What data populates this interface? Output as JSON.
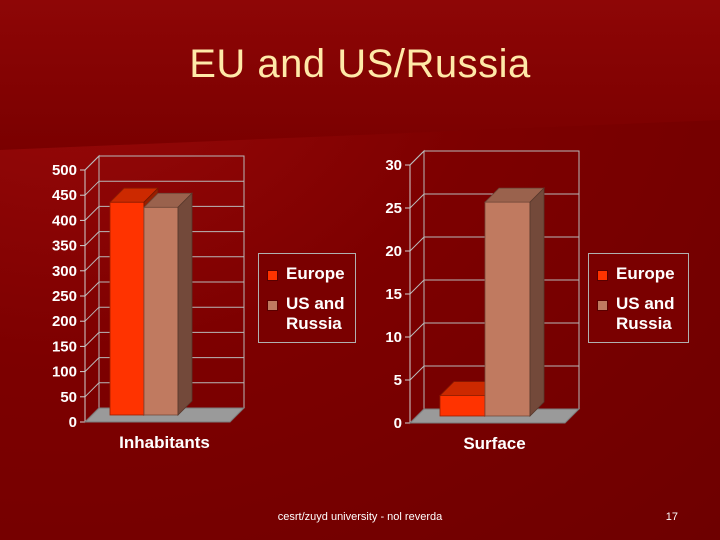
{
  "slide": {
    "title": "EU and US/Russia",
    "footer": "cesrt/zuyd university - nol reverda",
    "page_number": "17"
  },
  "colors": {
    "europe": "#ff3300",
    "us_russia": "#c07a60",
    "floor": "#9a9a9a"
  },
  "chart_data": [
    {
      "type": "bar",
      "categories": [
        "Inhabitants"
      ],
      "series": [
        {
          "name": "Europe",
          "values": [
            450
          ]
        },
        {
          "name": "US and Russia",
          "values": [
            440
          ]
        }
      ],
      "xlabel": "Inhabitants",
      "ylim": [
        0,
        500
      ],
      "yticks": [
        "0",
        "50",
        "100",
        "150",
        "200",
        "250",
        "300",
        "350",
        "400",
        "450",
        "500"
      ],
      "legend": [
        "Europe",
        "US and Russia"
      ],
      "legend_position": "right"
    },
    {
      "type": "bar",
      "categories": [
        "Surface"
      ],
      "series": [
        {
          "name": "Europe",
          "values": [
            4
          ]
        },
        {
          "name": "US and Russia",
          "values": [
            26.5
          ]
        }
      ],
      "xlabel": "Surface",
      "ylim": [
        0,
        30
      ],
      "yticks": [
        "0",
        "5",
        "10",
        "15",
        "20",
        "25",
        "30"
      ],
      "legend": [
        "Europe",
        "US and Russia"
      ],
      "legend_position": "right"
    }
  ]
}
